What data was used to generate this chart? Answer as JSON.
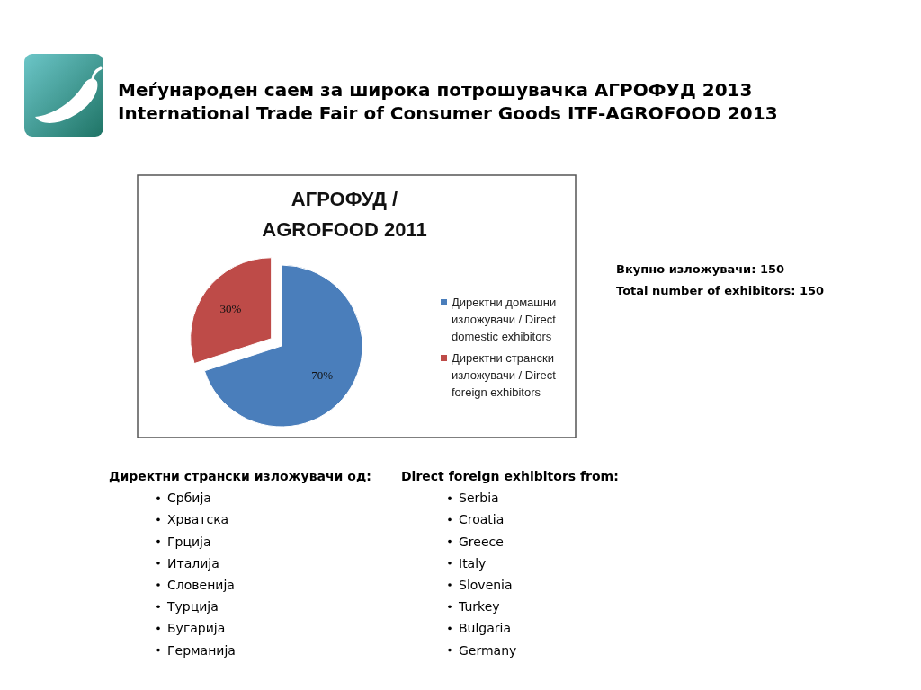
{
  "chart_data": [
    {
      "type": "other",
      "title": "Меѓународен саем за широка потрошувачка АГРОФУД 2013",
      "subtitle": "International Trade Fair of Consumer Goods ITF-AGROFOOD 2013"
    },
    {
      "type": "pie",
      "title": "АГРОФУД / AGROFOOD 2011",
      "categories": [
        "Директни домашни изложувачи / Direct domestic exhibitors",
        "Директни странски изложувачи / Direct foreign exhibitors"
      ],
      "values": [
        70,
        30
      ],
      "colors": [
        "#4a7ebb",
        "#be4b48"
      ],
      "value_labels": [
        "70%",
        "30%"
      ],
      "legend": "right"
    },
    {
      "type": "other",
      "annotations": [
        "Вкупно изложувачи: 150",
        "Total number of exhibitors: 150"
      ]
    },
    {
      "type": "other",
      "title": "Директни странски изложувачи од:",
      "annotations": [
        "Србија",
        "Хрватска",
        "Грција",
        "Италија",
        "Словенија",
        "Турција",
        "Бугарија",
        "Германија"
      ]
    },
    {
      "type": "other",
      "title": "Direct foreign exhibitors from:",
      "annotations": [
        "Serbia",
        "Croatia",
        "Greece",
        "Italy",
        "Slovenia",
        "Turkey",
        "Bulgaria",
        "Germany"
      ]
    }
  ]
}
